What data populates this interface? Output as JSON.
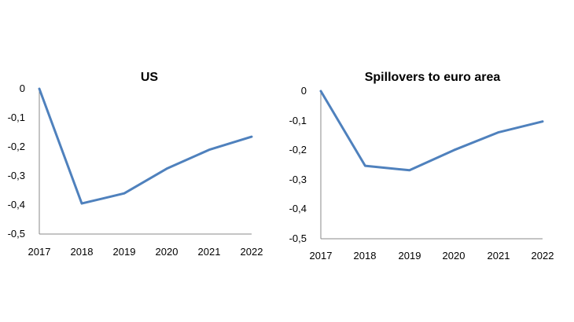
{
  "chart_data": [
    {
      "type": "line",
      "title": "US",
      "x": [
        "2017",
        "2018",
        "2019",
        "2020",
        "2021",
        "2022"
      ],
      "series": [
        {
          "values": [
            0,
            -0.395,
            -0.36,
            -0.275,
            -0.21,
            -0.165
          ]
        }
      ],
      "yticks": [
        "0",
        "-0,1",
        "-0,2",
        "-0,3",
        "-0,4",
        "-0,5"
      ],
      "ylim": [
        -0.5,
        0
      ],
      "grid": false,
      "line_color": "#4F81BD"
    },
    {
      "type": "line",
      "title": "Spillovers to euro area",
      "x": [
        "2017",
        "2018",
        "2019",
        "2020",
        "2021",
        "2022"
      ],
      "series": [
        {
          "values": [
            0,
            -0.253,
            -0.268,
            -0.2,
            -0.14,
            -0.103
          ]
        }
      ],
      "yticks": [
        "0",
        "-0,1",
        "-0,2",
        "-0,3",
        "-0,4",
        "-0,5"
      ],
      "ylim": [
        -0.5,
        0
      ],
      "grid": false,
      "line_color": "#4F81BD"
    }
  ]
}
